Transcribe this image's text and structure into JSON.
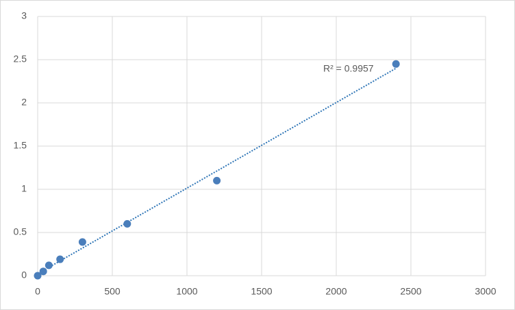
{
  "chart_data": {
    "type": "scatter",
    "annotation": "R² = 0.9957",
    "series": [
      {
        "color": "#4a7ebb",
        "x": [
          0,
          37.5,
          75,
          150,
          300,
          600,
          1200,
          2400
        ],
        "values": [
          0,
          0.05,
          0.12,
          0.19,
          0.39,
          0.6,
          1.1,
          2.45
        ]
      }
    ],
    "trendline": {
      "kind": "linear",
      "color": "#2e75b6"
    },
    "xlim": [
      0,
      3000
    ],
    "xticks": [
      0,
      500,
      1000,
      1500,
      2000,
      2500,
      3000
    ],
    "ylim": [
      0,
      3
    ],
    "yticks": [
      0,
      0.5,
      1,
      1.5,
      2,
      2.5,
      3
    ],
    "grid": true
  }
}
